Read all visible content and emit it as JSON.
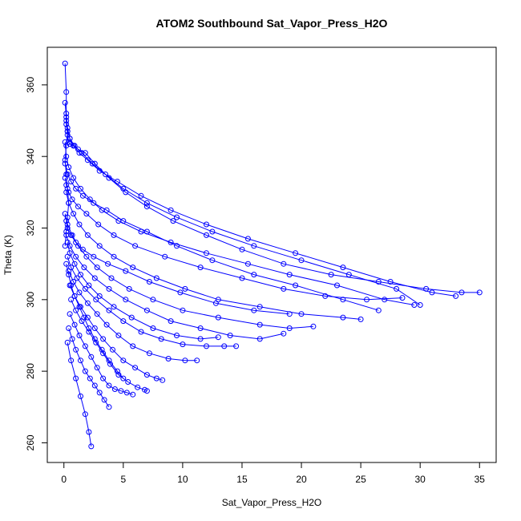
{
  "chart_data": {
    "type": "line",
    "title": "ATOM2 Southbound Sat_Vapor_Press_H2O",
    "xlabel": "Sat_Vapor_Press_H2O",
    "ylabel": "Theta (K)",
    "xlim": [
      -1.4,
      36.4
    ],
    "ylim": [
      254.5,
      370.5
    ],
    "xticks": [
      0,
      5,
      10,
      15,
      20,
      25,
      30,
      35
    ],
    "yticks": [
      260,
      280,
      300,
      320,
      340,
      360
    ],
    "grid": false,
    "marker": "open-circle",
    "color": "#0000ff",
    "series": [
      {
        "x": [
          0.1,
          0.2,
          0.2,
          0.3,
          0.4,
          0.5,
          0.8,
          1.2,
          1.8,
          2.6,
          3.8,
          5.2,
          7.0,
          9.2,
          12.0,
          15.0,
          18.5,
          22.5,
          26.5,
          30.5,
          33.5,
          35.0
        ],
        "y": [
          366.0,
          358.0,
          350.0,
          346.0,
          344.0,
          343.5,
          343.0,
          342.0,
          341.0,
          338.0,
          334.0,
          330.0,
          326.0,
          322.0,
          318.0,
          314.0,
          310.0,
          307.0,
          305.0,
          303.0,
          302.0,
          302.0
        ]
      },
      {
        "x": [
          0.2,
          0.3,
          0.5,
          0.9,
          1.5,
          2.4,
          3.5,
          5.0,
          7.0,
          9.5,
          12.5,
          16.0,
          20.0,
          24.0,
          28.0,
          30.0
        ],
        "y": [
          352.0,
          348.0,
          345.0,
          343.0,
          341.0,
          338.0,
          335.0,
          331.0,
          327.0,
          323.0,
          319.0,
          315.0,
          311.0,
          307.0,
          303.0,
          298.5
        ]
      },
      {
        "x": [
          0.1,
          0.2,
          0.4,
          0.8,
          1.4,
          2.2,
          3.2,
          4.6,
          6.5,
          9.0,
          12.0,
          15.5,
          19.0,
          23.0,
          27.0,
          29.5
        ],
        "y": [
          344.0,
          340.0,
          337.0,
          334.0,
          331.0,
          328.0,
          325.0,
          322.0,
          319.0,
          316.0,
          313.0,
          310.0,
          307.0,
          304.0,
          300.0,
          298.5
        ]
      },
      {
        "x": [
          0.1,
          0.3,
          0.6,
          1.0,
          1.6,
          2.5,
          3.6,
          5.0,
          7.0,
          9.5,
          12.5,
          16.0,
          19.5,
          23.5,
          26.5
        ],
        "y": [
          338.0,
          335.0,
          333.0,
          331.0,
          329.0,
          327.0,
          325.0,
          322.0,
          319.0,
          315.0,
          311.0,
          307.0,
          304.0,
          300.0,
          297.0
        ]
      },
      {
        "x": [
          0.2,
          0.4,
          0.8,
          1.3,
          2.0,
          3.0,
          4.2,
          5.8,
          7.8,
          10.2,
          13.0,
          16.5,
          20.0,
          23.5,
          25.0
        ],
        "y": [
          330.0,
          327.0,
          324.0,
          321.0,
          318.0,
          315.0,
          312.0,
          309.0,
          306.0,
          303.0,
          300.0,
          298.0,
          296.0,
          295.0,
          294.5
        ]
      },
      {
        "x": [
          0.1,
          0.3,
          0.7,
          1.2,
          1.9,
          2.8,
          4.0,
          5.5,
          7.5,
          10.0,
          13.0,
          16.5,
          19.0,
          21.0
        ],
        "y": [
          324.0,
          321.0,
          318.0,
          315.0,
          312.0,
          309.0,
          306.0,
          303.0,
          300.0,
          297.0,
          295.0,
          293.0,
          292.0,
          292.5
        ]
      },
      {
        "x": [
          0.2,
          0.5,
          1.0,
          1.7,
          2.6,
          3.8,
          5.2,
          7.0,
          9.0,
          11.5,
          14.0,
          16.5,
          18.5
        ],
        "y": [
          318.0,
          315.0,
          312.0,
          309.0,
          306.0,
          303.0,
          300.0,
          297.0,
          294.0,
          292.0,
          290.0,
          289.0,
          290.5
        ]
      },
      {
        "x": [
          0.3,
          0.6,
          1.1,
          1.8,
          2.7,
          3.8,
          5.0,
          6.5,
          8.2,
          10.0,
          12.0,
          13.5,
          14.5
        ],
        "y": [
          312.0,
          309.0,
          306.0,
          303.0,
          300.0,
          297.0,
          294.0,
          291.0,
          289.0,
          287.5,
          287.0,
          287.0,
          287.0
        ]
      },
      {
        "x": [
          0.4,
          0.8,
          1.3,
          2.0,
          2.8,
          3.6,
          4.6,
          5.8,
          7.2,
          8.8,
          10.2,
          11.2
        ],
        "y": [
          308.0,
          305.0,
          302.0,
          299.0,
          296.0,
          293.0,
          290.0,
          287.0,
          285.0,
          283.5,
          283.0,
          283.0
        ]
      },
      {
        "x": [
          0.5,
          0.9,
          1.4,
          2.0,
          2.6,
          3.3,
          4.1,
          5.0,
          6.0,
          7.0,
          7.8,
          8.3
        ],
        "y": [
          304.0,
          301.0,
          298.0,
          295.0,
          292.0,
          289.0,
          286.0,
          283.0,
          281.0,
          279.0,
          278.0,
          277.5
        ]
      },
      {
        "x": [
          0.6,
          1.0,
          1.5,
          2.1,
          2.7,
          3.3,
          3.9,
          4.6,
          5.4,
          6.2,
          6.8,
          7.0
        ],
        "y": [
          300.0,
          297.0,
          294.0,
          291.0,
          288.0,
          285.0,
          282.0,
          279.0,
          277.0,
          275.5,
          274.8,
          274.5
        ]
      },
      {
        "x": [
          0.5,
          0.9,
          1.3,
          1.8,
          2.3,
          2.8,
          3.3,
          3.8,
          4.3,
          4.8,
          5.3,
          5.8
        ],
        "y": [
          296.0,
          293.0,
          290.0,
          287.0,
          284.0,
          281.0,
          278.0,
          276.0,
          275.0,
          274.5,
          274.0,
          273.5
        ]
      },
      {
        "x": [
          0.4,
          0.7,
          1.0,
          1.4,
          1.8,
          2.2,
          2.6,
          3.0,
          3.4,
          3.8
        ],
        "y": [
          292.0,
          289.0,
          286.0,
          283.0,
          280.0,
          278.0,
          276.0,
          274.0,
          272.0,
          270.0
        ]
      },
      {
        "x": [
          0.3,
          0.6,
          1.0,
          1.4,
          1.8,
          2.1,
          2.3
        ],
        "y": [
          288.0,
          283.0,
          278.0,
          273.0,
          268.0,
          263.0,
          259.0
        ]
      },
      {
        "x": [
          0.2,
          0.3,
          0.5,
          0.8,
          1.3,
          2.0,
          3.0,
          4.5,
          6.5,
          9.0,
          12.0,
          15.5,
          19.5,
          23.5,
          27.5,
          31.0,
          33.0
        ],
        "y": [
          349.0,
          347.0,
          345.0,
          343.0,
          341.0,
          339.0,
          336.0,
          333.0,
          329.0,
          325.0,
          321.0,
          317.0,
          313.0,
          309.0,
          305.0,
          302.0,
          301.0
        ]
      },
      {
        "x": [
          0.1,
          0.2,
          0.4,
          0.7,
          1.2,
          1.9,
          2.9,
          4.2,
          6.0,
          8.5,
          11.5,
          15.0,
          18.5,
          22.0,
          25.5,
          28.5
        ],
        "y": [
          334.0,
          332.0,
          330.0,
          328.0,
          326.0,
          324.0,
          321.0,
          318.0,
          315.0,
          312.0,
          309.0,
          306.0,
          303.0,
          301.0,
          300.0,
          300.5
        ]
      },
      {
        "x": [
          0.2,
          0.3,
          0.6,
          1.0,
          1.6,
          2.5,
          3.7,
          5.2,
          7.2,
          9.8,
          12.8,
          16.0,
          19.0
        ],
        "y": [
          322.0,
          320.0,
          318.0,
          316.0,
          314.0,
          312.0,
          310.0,
          308.0,
          305.0,
          302.0,
          299.0,
          297.0,
          296.0
        ]
      },
      {
        "x": [
          0.3,
          0.5,
          0.9,
          1.4,
          2.1,
          3.0,
          4.2,
          5.7,
          7.5,
          9.5,
          11.5,
          13.0
        ],
        "y": [
          316.0,
          313.0,
          310.0,
          307.0,
          304.0,
          301.0,
          298.0,
          295.0,
          292.0,
          290.0,
          289.0,
          289.5
        ]
      },
      {
        "x": [
          0.1,
          0.2,
          0.3,
          0.4,
          0.3,
          0.2,
          0.1,
          0.2,
          0.3,
          0.2,
          0.1
        ],
        "y": [
          315.0,
          319.0,
          323.0,
          327.0,
          331.0,
          335.0,
          339.0,
          343.0,
          347.0,
          351.0,
          355.0
        ]
      },
      {
        "x": [
          0.2,
          0.4,
          0.6,
          0.9,
          1.3,
          1.7,
          2.1,
          2.6,
          3.2,
          3.8,
          4.5,
          5.0
        ],
        "y": [
          310.0,
          307.0,
          304.0,
          301.0,
          298.0,
          295.0,
          292.0,
          289.0,
          286.0,
          283.0,
          280.0,
          278.0
        ]
      }
    ]
  }
}
